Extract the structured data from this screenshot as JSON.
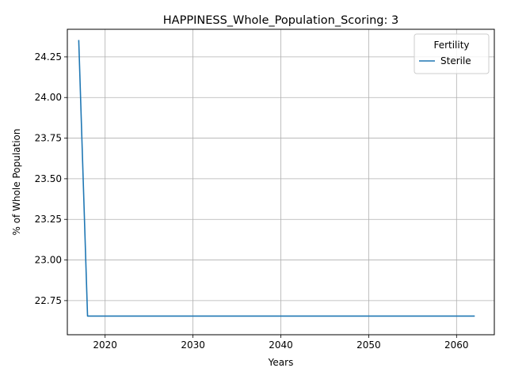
{
  "chart_data": {
    "type": "line",
    "title": "HAPPINESS_Whole_Population_Scoring: 3",
    "xlabel": "Years",
    "ylabel": "% of Whole Population",
    "xlim": [
      2015.7,
      2064.3
    ],
    "ylim": [
      22.54,
      24.42
    ],
    "xticks": [
      2020,
      2030,
      2040,
      2050,
      2060
    ],
    "xtick_labels": [
      "2020",
      "2030",
      "2040",
      "2050",
      "2060"
    ],
    "yticks": [
      22.75,
      23.0,
      23.25,
      23.5,
      23.75,
      24.0,
      24.25
    ],
    "ytick_labels": [
      "22.75",
      "23.00",
      "23.25",
      "23.50",
      "23.75",
      "24.00",
      "24.25"
    ],
    "grid": true,
    "legend": {
      "title": "Fertility",
      "position": "top-right"
    },
    "series": [
      {
        "name": "Sterile",
        "color": "#1f77b4",
        "x": [
          2017,
          2018,
          2019,
          2020,
          2021,
          2022,
          2023,
          2024,
          2025,
          2026,
          2027,
          2028,
          2029,
          2030,
          2031,
          2032,
          2033,
          2034,
          2035,
          2036,
          2037,
          2038,
          2039,
          2040,
          2041,
          2042,
          2043,
          2044,
          2045,
          2046,
          2047,
          2048,
          2049,
          2050,
          2051,
          2052,
          2053,
          2054,
          2055,
          2056,
          2057,
          2058,
          2059,
          2060,
          2061,
          2062
        ],
        "y": [
          24.35,
          22.655,
          22.655,
          22.655,
          22.655,
          22.655,
          22.655,
          22.655,
          22.655,
          22.655,
          22.655,
          22.655,
          22.655,
          22.655,
          22.655,
          22.655,
          22.655,
          22.655,
          22.655,
          22.655,
          22.655,
          22.655,
          22.655,
          22.655,
          22.655,
          22.655,
          22.655,
          22.655,
          22.655,
          22.655,
          22.655,
          22.655,
          22.655,
          22.655,
          22.655,
          22.655,
          22.655,
          22.655,
          22.655,
          22.655,
          22.655,
          22.655,
          22.655,
          22.655,
          22.655,
          22.655
        ]
      }
    ]
  }
}
